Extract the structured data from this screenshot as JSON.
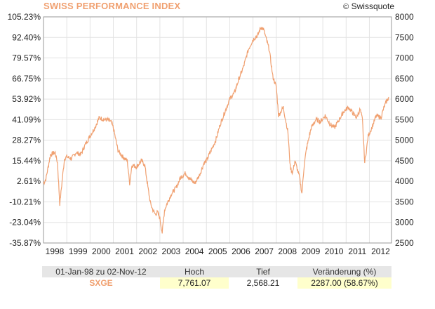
{
  "header": {
    "title": "SWISS PERFORMANCE INDEX",
    "credit": "Swissquote",
    "credit_symbol": "©"
  },
  "chart_data": {
    "type": "line",
    "title": "SWISS PERFORMANCE INDEX",
    "series": [
      {
        "name": "SXGE",
        "color": "#f0a070",
        "x": [
          1998.0,
          1998.1,
          1998.3,
          1998.5,
          1998.6,
          1998.7,
          1998.9,
          1999.0,
          1999.2,
          1999.4,
          1999.6,
          1999.8,
          2000.0,
          2000.2,
          2000.4,
          2000.6,
          2000.75,
          2000.9,
          2001.0,
          2001.2,
          2001.4,
          2001.6,
          2001.7,
          2001.8,
          2002.0,
          2002.2,
          2002.35,
          2002.5,
          2002.6,
          2002.7,
          2002.8,
          2002.9,
          2003.0,
          2003.1,
          2003.2,
          2003.3,
          2003.5,
          2003.7,
          2003.9,
          2004.1,
          2004.3,
          2004.5,
          2004.7,
          2004.9,
          2005.0,
          2005.2,
          2005.4,
          2005.6,
          2005.8,
          2006.0,
          2006.2,
          2006.4,
          2006.6,
          2006.8,
          2007.0,
          2007.2,
          2007.35,
          2007.45,
          2007.55,
          2007.7,
          2007.85,
          2008.0,
          2008.1,
          2008.3,
          2008.5,
          2008.6,
          2008.7,
          2008.8,
          2008.9,
          2009.0,
          2009.1,
          2009.2,
          2009.3,
          2009.5,
          2009.7,
          2009.9,
          2010.1,
          2010.3,
          2010.5,
          2010.7,
          2010.9,
          2011.1,
          2011.3,
          2011.45,
          2011.6,
          2011.7,
          2011.8,
          2011.95,
          2012.1,
          2012.3,
          2012.5,
          2012.6,
          2012.7,
          2012.84
        ],
        "values": [
          3950,
          4050,
          4650,
          4700,
          4450,
          3450,
          4550,
          4600,
          4550,
          4700,
          4650,
          4900,
          5100,
          5300,
          5550,
          5500,
          5500,
          5450,
          5300,
          4750,
          4600,
          4500,
          3950,
          4400,
          4350,
          4500,
          4400,
          3800,
          3450,
          3300,
          3200,
          3250,
          3100,
          2750,
          3300,
          3450,
          3700,
          3850,
          4100,
          4200,
          4050,
          3950,
          4150,
          4450,
          4500,
          4750,
          5000,
          5400,
          5700,
          6000,
          6150,
          6500,
          6800,
          7200,
          7450,
          7550,
          7750,
          7700,
          7500,
          7200,
          6550,
          6300,
          5600,
          5800,
          5200,
          4350,
          4200,
          4500,
          4300,
          4100,
          3700,
          4400,
          4800,
          5300,
          5500,
          5450,
          5600,
          5400,
          5300,
          5500,
          5700,
          5800,
          5650,
          5550,
          5750,
          5500,
          4450,
          5100,
          5300,
          5600,
          5550,
          5750,
          5900,
          6050
        ]
      }
    ],
    "y_right": {
      "ticks": [
        2500,
        3000,
        3500,
        4000,
        4500,
        5000,
        5500,
        6000,
        6500,
        7000,
        7500,
        8000
      ],
      "labels": [
        "2500",
        "3000",
        "3500",
        "4000",
        "4500",
        "5000",
        "5500",
        "6000",
        "6500",
        "7000",
        "7500",
        "8000"
      ],
      "ylim": [
        2500,
        8000
      ]
    },
    "y_left": {
      "labels": [
        "-35.87%",
        "-23.04%",
        "-10.21%",
        "2.61%",
        "15.44%",
        "28.27%",
        "41.09%",
        "53.92%",
        "66.75%",
        "79.57%",
        "92.40%",
        "105.23%"
      ]
    },
    "x_axis": {
      "ticks": [
        1998,
        1999,
        2000,
        2001,
        2002,
        2003,
        2004,
        2005,
        2006,
        2007,
        2008,
        2009,
        2010,
        2011,
        2012
      ],
      "labels": [
        "1998",
        "1999",
        "2000",
        "2001",
        "2002",
        "2003",
        "2004",
        "2005",
        "2006",
        "2007",
        "2008",
        "2009",
        "2010",
        "2011",
        "2012"
      ],
      "xlim": [
        1998.0,
        2012.95
      ]
    },
    "grid": true
  },
  "summary": {
    "period_label": "01-Jan-98 zu 02-Nov-12",
    "col_high": "Hoch",
    "col_low": "Tief",
    "col_change": "Veränderung (%)",
    "symbol": "SXGE",
    "high": "7,761.07",
    "low": "2,568.21",
    "change": "2287.00 (58.67%)"
  }
}
